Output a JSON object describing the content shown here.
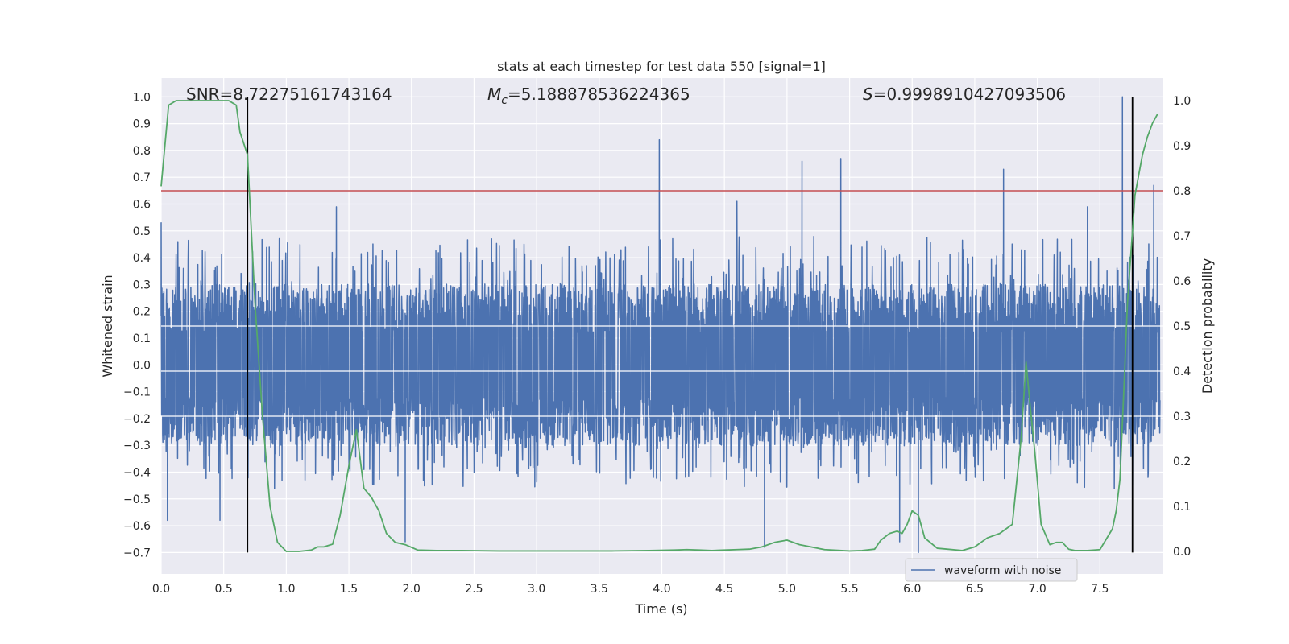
{
  "chart_data": {
    "type": "line",
    "title": "stats at each timestep for test data 550 [signal=1]",
    "xlabel": "Time (s)",
    "ylabel": "Whitened strain",
    "ylabel_right": "Detection probability",
    "xlim": [
      0.0,
      8.0
    ],
    "ylim": [
      -0.78,
      1.07
    ],
    "ylim_right": [
      -0.05,
      1.05
    ],
    "x_ticks": [
      0.0,
      0.5,
      1.0,
      1.5,
      2.0,
      2.5,
      3.0,
      3.5,
      4.0,
      4.5,
      5.0,
      5.5,
      6.0,
      6.5,
      7.0,
      7.5
    ],
    "x_tick_labels": [
      "0.0",
      "0.5",
      "1.0",
      "1.5",
      "2.0",
      "2.5",
      "3.0",
      "3.5",
      "4.0",
      "4.5",
      "5.0",
      "5.5",
      "6.0",
      "6.5",
      "7.0",
      "7.5"
    ],
    "y_ticks": [
      -0.7,
      -0.6,
      -0.5,
      -0.4,
      -0.3,
      -0.2,
      -0.1,
      0.0,
      0.1,
      0.2,
      0.3,
      0.4,
      0.5,
      0.6,
      0.7,
      0.8,
      0.9,
      1.0
    ],
    "y_tick_labels": [
      "−0.7",
      "−0.6",
      "−0.5",
      "−0.4",
      "−0.3",
      "−0.2",
      "−0.1",
      "0.0",
      "0.1",
      "0.2",
      "0.3",
      "0.4",
      "0.5",
      "0.6",
      "0.7",
      "0.8",
      "0.9",
      "1.0"
    ],
    "y_right_ticks": [
      0.0,
      0.1,
      0.2,
      0.3,
      0.4,
      0.5,
      0.6,
      0.7,
      0.8,
      0.9,
      1.0
    ],
    "y_right_tick_labels": [
      "0.0",
      "0.1",
      "0.2",
      "0.3",
      "0.4",
      "0.5",
      "0.6",
      "0.7",
      "0.8",
      "0.9",
      "1.0"
    ],
    "annotations": {
      "snr": "SNR=8.72275161743164",
      "mc_symbol": "M",
      "mc_subscript": "c",
      "mc_value": "=5.188878536224365",
      "s_symbol": "S",
      "s_value": "=0.9998910427093506"
    },
    "threshold_line": {
      "y_right": 0.8,
      "color": "#c44e52"
    },
    "vertical_markers": [
      0.69,
      7.76
    ],
    "legend": {
      "label": "waveform with noise",
      "placement": "lower-right"
    },
    "series": [
      {
        "name": "waveform with noise",
        "axis": "left",
        "color": "#4c72b0",
        "description": "whitened strain sampled densely over 0-8 s",
        "envelope_upper": 0.3,
        "envelope_lower": -0.3,
        "peaks": [
          {
            "x": 0.0,
            "y": 0.53
          },
          {
            "x": 0.05,
            "y": -0.58
          },
          {
            "x": 0.47,
            "y": -0.58
          },
          {
            "x": 1.4,
            "y": 0.59
          },
          {
            "x": 1.95,
            "y": -0.66
          },
          {
            "x": 3.98,
            "y": 0.84
          },
          {
            "x": 4.6,
            "y": 0.61
          },
          {
            "x": 4.82,
            "y": -0.68
          },
          {
            "x": 5.12,
            "y": 0.76
          },
          {
            "x": 5.43,
            "y": 0.77
          },
          {
            "x": 5.9,
            "y": -0.66
          },
          {
            "x": 6.05,
            "y": -0.7
          },
          {
            "x": 6.73,
            "y": 0.73
          },
          {
            "x": 7.4,
            "y": 0.59
          },
          {
            "x": 7.68,
            "y": 1.0
          },
          {
            "x": 7.93,
            "y": 0.67
          }
        ]
      },
      {
        "name": "Detection probability",
        "axis": "right",
        "color": "#55a868",
        "x": [
          0.0,
          0.06,
          0.12,
          0.18,
          0.24,
          0.3,
          0.36,
          0.42,
          0.48,
          0.54,
          0.6,
          0.63,
          0.69,
          0.75,
          0.81,
          0.87,
          0.93,
          1.0,
          1.1,
          1.2,
          1.25,
          1.3,
          1.37,
          1.43,
          1.5,
          1.56,
          1.62,
          1.68,
          1.74,
          1.8,
          1.87,
          1.95,
          2.05,
          2.2,
          2.4,
          2.7,
          3.0,
          3.3,
          3.6,
          3.9,
          4.1,
          4.2,
          4.3,
          4.4,
          4.5,
          4.6,
          4.7,
          4.8,
          4.9,
          5.0,
          5.1,
          5.3,
          5.5,
          5.6,
          5.7,
          5.75,
          5.82,
          5.88,
          5.92,
          5.96,
          6.0,
          6.05,
          6.1,
          6.2,
          6.4,
          6.5,
          6.6,
          6.7,
          6.8,
          6.87,
          6.91,
          6.94,
          6.98,
          7.03,
          7.1,
          7.15,
          7.2,
          7.25,
          7.3,
          7.4,
          7.5,
          7.6,
          7.63,
          7.66,
          7.69,
          7.72,
          7.78,
          7.84,
          7.88,
          7.92,
          7.96
        ],
        "y": [
          0.81,
          0.99,
          1.0,
          1.0,
          1.0,
          1.0,
          1.0,
          1.0,
          1.0,
          1.0,
          0.99,
          0.93,
          0.88,
          0.55,
          0.3,
          0.1,
          0.02,
          0.0,
          0.0,
          0.003,
          0.01,
          0.01,
          0.016,
          0.08,
          0.19,
          0.27,
          0.14,
          0.12,
          0.09,
          0.04,
          0.02,
          0.015,
          0.003,
          0.002,
          0.002,
          0.001,
          0.001,
          0.001,
          0.001,
          0.002,
          0.003,
          0.004,
          0.003,
          0.002,
          0.003,
          0.004,
          0.005,
          0.01,
          0.02,
          0.025,
          0.015,
          0.004,
          0.001,
          0.002,
          0.005,
          0.025,
          0.04,
          0.045,
          0.04,
          0.06,
          0.09,
          0.08,
          0.03,
          0.007,
          0.002,
          0.01,
          0.03,
          0.04,
          0.06,
          0.25,
          0.42,
          0.33,
          0.22,
          0.06,
          0.015,
          0.02,
          0.02,
          0.005,
          0.002,
          0.002,
          0.004,
          0.05,
          0.09,
          0.16,
          0.35,
          0.55,
          0.79,
          0.88,
          0.92,
          0.95,
          0.97
        ]
      }
    ]
  }
}
